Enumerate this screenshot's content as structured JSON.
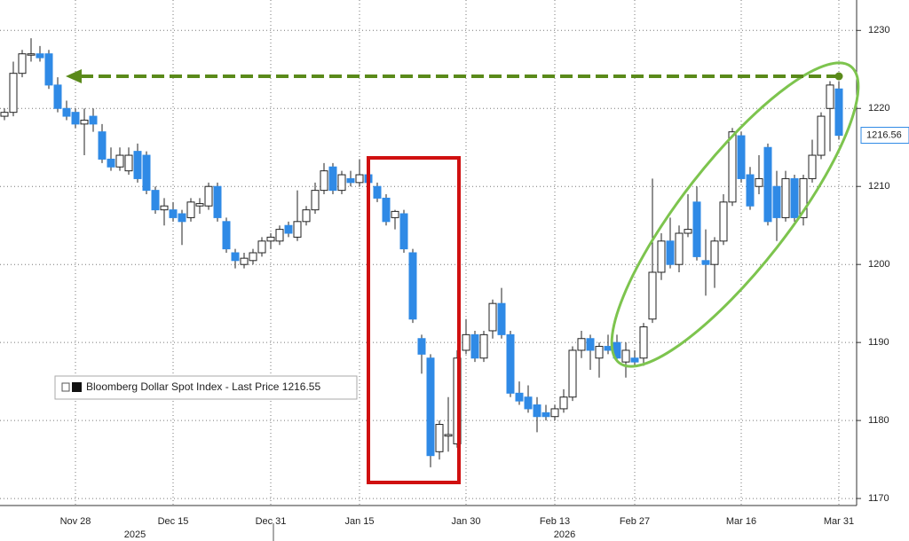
{
  "chart_data": {
    "type": "candlestick",
    "legend": {
      "name": "Bloomberg Dollar Spot Index - Last Price",
      "last_price": 1216.55
    },
    "last_label": 1216.56,
    "year_labels": [
      "2025",
      "2026"
    ],
    "up_color": "#ffffff",
    "down_color": "#2f8ae6",
    "ylim": [
      1169.1,
      1233.9
    ],
    "yticks": [
      1170,
      1180,
      1190,
      1200,
      1210,
      1220,
      1230
    ],
    "grid": true,
    "categories": [
      null,
      null,
      null,
      null,
      null,
      null,
      null,
      null,
      "Nov 28",
      null,
      null,
      null,
      null,
      null,
      null,
      null,
      null,
      null,
      null,
      "Dec 15",
      null,
      null,
      null,
      null,
      null,
      null,
      null,
      null,
      null,
      null,
      "Dec 31",
      null,
      null,
      null,
      null,
      null,
      null,
      null,
      null,
      null,
      "Jan 15",
      null,
      null,
      null,
      null,
      null,
      null,
      null,
      null,
      null,
      null,
      null,
      "Jan 30",
      null,
      null,
      null,
      null,
      null,
      null,
      null,
      null,
      null,
      "Feb 13",
      null,
      null,
      null,
      null,
      null,
      null,
      null,
      null,
      "Feb 27",
      null,
      null,
      null,
      null,
      null,
      null,
      null,
      null,
      null,
      null,
      null,
      "Mar 16",
      null,
      null,
      null,
      null,
      null,
      null,
      null,
      null,
      null,
      null,
      "Mar 31"
    ],
    "ohlc": [
      [
        1219,
        1220,
        1218.5,
        1219.5
      ],
      [
        1219.5,
        1226,
        1219,
        1224.5
      ],
      [
        1224.5,
        1227.5,
        1224,
        1227
      ],
      [
        1227,
        1229,
        1226,
        1227
      ],
      [
        1227,
        1228,
        1226,
        1226.5
      ],
      [
        1227,
        1227.5,
        1222.5,
        1223
      ],
      [
        1223,
        1224,
        1219.5,
        1220
      ],
      [
        1220,
        1221,
        1218.5,
        1219
      ],
      [
        1219.5,
        1220,
        1217.5,
        1218
      ],
      [
        1218,
        1220,
        1214,
        1218.5
      ],
      [
        1219,
        1220,
        1217,
        1218
      ],
      [
        1217,
        1218,
        1213,
        1213.5
      ],
      [
        1213.5,
        1215,
        1212,
        1212.5
      ],
      [
        1212.5,
        1215,
        1212,
        1214
      ],
      [
        1212,
        1215,
        1211.5,
        1214
      ],
      [
        1214.5,
        1215.5,
        1210.5,
        1211
      ],
      [
        1214,
        1214.5,
        1209,
        1209.5
      ],
      [
        1209.5,
        1210,
        1206.5,
        1207
      ],
      [
        1207,
        1208.5,
        1205,
        1207.5
      ],
      [
        1207,
        1208,
        1205.5,
        1206
      ],
      [
        1206.5,
        1207,
        1202.5,
        1205.5
      ],
      [
        1206,
        1208.5,
        1205.5,
        1208
      ],
      [
        1207.5,
        1208.5,
        1206.5,
        1207.8
      ],
      [
        1207.5,
        1210.5,
        1207,
        1210
      ],
      [
        1210,
        1210.5,
        1205.5,
        1206
      ],
      [
        1205.5,
        1206,
        1201.5,
        1202
      ],
      [
        1201.5,
        1202,
        1199.5,
        1200.5
      ],
      [
        1200,
        1201.5,
        1199.5,
        1200.8
      ],
      [
        1200.5,
        1202,
        1200,
        1201.5
      ],
      [
        1201.5,
        1203.5,
        1201,
        1203
      ],
      [
        1203,
        1204,
        1202,
        1203.5
      ],
      [
        1203,
        1205,
        1202.5,
        1204.5
      ],
      [
        1205,
        1205.5,
        1203.5,
        1204
      ],
      [
        1203.5,
        1209.5,
        1203,
        1205.5
      ],
      [
        1205.5,
        1207.5,
        1205,
        1207
      ],
      [
        1207,
        1210.5,
        1206.5,
        1209.5
      ],
      [
        1209.5,
        1213,
        1209,
        1212
      ],
      [
        1212.5,
        1213,
        1209,
        1209.5
      ],
      [
        1209.5,
        1212,
        1209,
        1211.5
      ],
      [
        1211,
        1212,
        1210,
        1210.5
      ],
      [
        1210.5,
        1213.5,
        1210,
        1211.5
      ],
      [
        1211.5,
        1212,
        1210,
        1210.5
      ],
      [
        1210,
        1210.5,
        1208,
        1208.5
      ],
      [
        1208.5,
        1209,
        1205,
        1205.5
      ],
      [
        1206,
        1207,
        1204.5,
        1206.8
      ],
      [
        1206.5,
        1207,
        1201.5,
        1202
      ],
      [
        1201.5,
        1202,
        1192.5,
        1193
      ],
      [
        1190.5,
        1191,
        1186,
        1188.5
      ],
      [
        1188,
        1188.5,
        1174,
        1175.5
      ],
      [
        1176,
        1180,
        1175,
        1179.5
      ],
      [
        1178,
        1183,
        1176,
        1178.2
      ],
      [
        1177,
        1189,
        1176.5,
        1188
      ],
      [
        1189,
        1193,
        1188.5,
        1191
      ],
      [
        1191,
        1191.5,
        1187.5,
        1188
      ],
      [
        1188,
        1191.5,
        1187.5,
        1191
      ],
      [
        1191.5,
        1195.5,
        1190.5,
        1195
      ],
      [
        1195,
        1197,
        1190.5,
        1191
      ],
      [
        1191,
        1191.5,
        1183,
        1183.5
      ],
      [
        1183.5,
        1185,
        1182,
        1182.5
      ],
      [
        1183,
        1184.5,
        1181,
        1181.5
      ],
      [
        1182,
        1183,
        1178.5,
        1180.5
      ],
      [
        1181,
        1182,
        1180,
        1180.5
      ],
      [
        1180.5,
        1182,
        1180,
        1181.5
      ],
      [
        1181.5,
        1184,
        1181,
        1183
      ],
      [
        1183,
        1189.5,
        1182.5,
        1189
      ],
      [
        1189,
        1191.5,
        1188,
        1190.5
      ],
      [
        1190.5,
        1191,
        1186.5,
        1189
      ],
      [
        1188,
        1190,
        1185.5,
        1189.5
      ],
      [
        1189.5,
        1191,
        1188.5,
        1189
      ],
      [
        1190,
        1191,
        1187.5,
        1188
      ],
      [
        1187.5,
        1190,
        1185.5,
        1189
      ],
      [
        1188,
        1189,
        1187,
        1187.5
      ],
      [
        1188,
        1192.5,
        1187,
        1192
      ],
      [
        1193,
        1211,
        1192.5,
        1199
      ],
      [
        1199,
        1204,
        1198,
        1203
      ],
      [
        1203,
        1206,
        1199.5,
        1200
      ],
      [
        1200,
        1205,
        1199,
        1204
      ],
      [
        1204,
        1209,
        1203.5,
        1204.5
      ],
      [
        1208,
        1210,
        1200.5,
        1201
      ],
      [
        1200.5,
        1204.5,
        1196,
        1200
      ],
      [
        1200,
        1203.5,
        1197,
        1203
      ],
      [
        1203,
        1209,
        1202.5,
        1208
      ],
      [
        1208,
        1217.5,
        1207.5,
        1217
      ],
      [
        1216.5,
        1217,
        1210.5,
        1211
      ],
      [
        1211.5,
        1212.5,
        1207,
        1207.5
      ],
      [
        1210,
        1214,
        1209,
        1211
      ],
      [
        1215,
        1215.5,
        1205,
        1205.5
      ],
      [
        1210,
        1212,
        1203,
        1206
      ],
      [
        1206,
        1212,
        1205.5,
        1211
      ],
      [
        1211,
        1211.5,
        1205.5,
        1206
      ],
      [
        1206,
        1211.5,
        1205,
        1211
      ],
      [
        1211,
        1216,
        1210.5,
        1214
      ],
      [
        1214,
        1219.5,
        1213.5,
        1219
      ],
      [
        1220,
        1223.5,
        1214.5,
        1223
      ],
      [
        1222.5,
        1223.5,
        1216,
        1216.55
      ]
    ]
  }
}
